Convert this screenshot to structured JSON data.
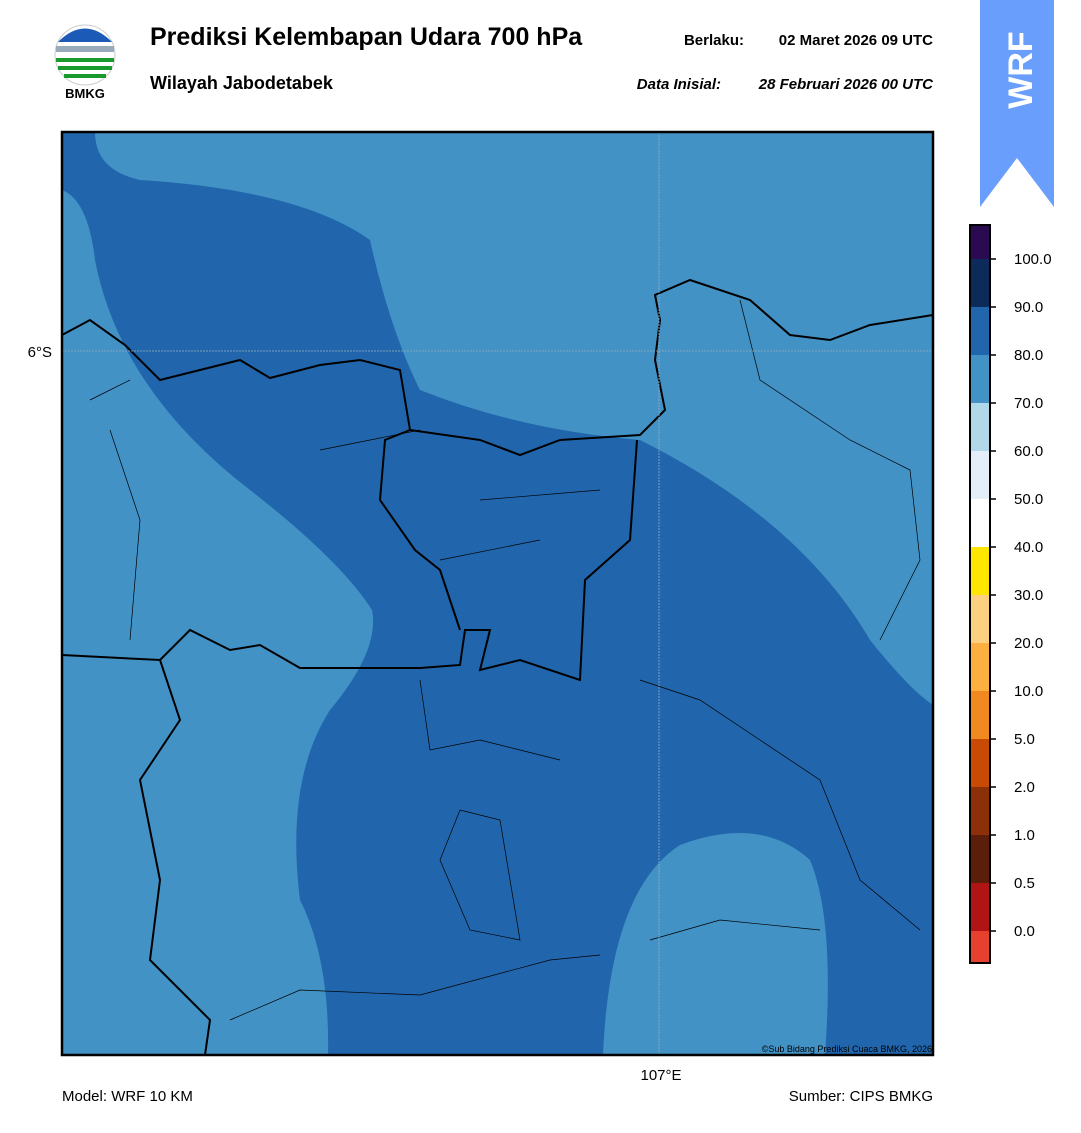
{
  "header": {
    "title": "Prediksi Kelembapan Udara 700 hPa",
    "subtitle": "Wilayah Jabodetabek",
    "valid_label": "Berlaku:",
    "valid_time": "02 Maret 2026 09 UTC",
    "init_label": "Data Inisial:",
    "init_time": "28 Februari 2026 00 UTC",
    "logo_text": "BMKG",
    "badge": "WRF"
  },
  "map": {
    "lat_label": "6°S",
    "lon_label": "107°E",
    "credit": "©Sub Bidang Prediksi Cuaca BMKG, 2026"
  },
  "colorbar": {
    "ticks": [
      "0.0",
      "0.5",
      "1.0",
      "2.0",
      "5.0",
      "10.0",
      "20.0",
      "30.0",
      "40.0",
      "50.0",
      "60.0",
      "70.0",
      "80.0",
      "90.0",
      "100.0"
    ],
    "colors": [
      "#e8402e",
      "#b01414",
      "#5a1e0a",
      "#8b3008",
      "#c84a05",
      "#f08a20",
      "#fdb040",
      "#fdd080",
      "#ffe600",
      "#ffffff",
      "#e4eef8",
      "#b0d8e8",
      "#4292c6",
      "#2166ac",
      "#0d2b5a",
      "#2a0a50"
    ]
  },
  "footer": {
    "model": "Model: WRF 10 KM",
    "source": "Sumber: CIPS BMKG"
  }
}
